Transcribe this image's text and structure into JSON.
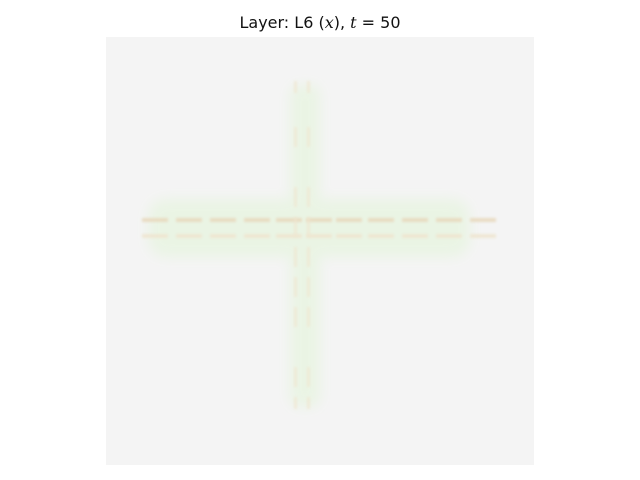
{
  "title": {
    "prefix": "Layer: L6 (",
    "var": "x",
    "middle": "), ",
    "t_symbol": "t",
    "equals": " = ",
    "t_value": "50"
  },
  "colors": {
    "background": "#f4f4f4",
    "cross_glow": "#e9f4e3",
    "band": "#e8d8bc",
    "band_light": "#efe5cf"
  }
}
